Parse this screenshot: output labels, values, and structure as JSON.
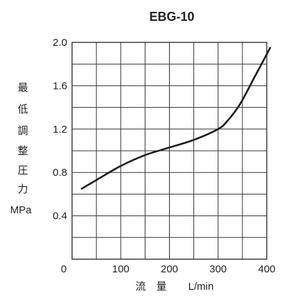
{
  "chart_data": {
    "type": "line",
    "title": "EBG-10",
    "xlabel": "流　量",
    "xlabel_unit": "L/min",
    "ylabel_chars": [
      "最",
      "低",
      "調",
      "整",
      "圧",
      "力"
    ],
    "ylabel_unit": "MPa",
    "xlim": [
      0,
      400
    ],
    "ylim": [
      0,
      2.0
    ],
    "x_ticks": [
      {
        "value": 0,
        "label": "0"
      },
      {
        "value": 100,
        "label": "100"
      },
      {
        "value": 200,
        "label": "200"
      },
      {
        "value": 300,
        "label": "300"
      },
      {
        "value": 400,
        "label": "400"
      }
    ],
    "y_ticks": [
      {
        "value": 0.4,
        "label": "0.4"
      },
      {
        "value": 0.8,
        "label": "0.8"
      },
      {
        "value": 1.2,
        "label": "1.2"
      },
      {
        "value": 1.6,
        "label": "1.6"
      },
      {
        "value": 2.0,
        "label": "2.0"
      }
    ],
    "grid": true,
    "grid_x_step": 50,
    "grid_y_step": 0.2,
    "series": [
      {
        "color": "#1a1a1a",
        "x": [
          20,
          50,
          100,
          150,
          200,
          250,
          300,
          320,
          345,
          375,
          407
        ],
        "y": [
          0.65,
          0.73,
          0.86,
          0.96,
          1.03,
          1.1,
          1.2,
          1.28,
          1.43,
          1.68,
          1.95
        ]
      }
    ]
  }
}
